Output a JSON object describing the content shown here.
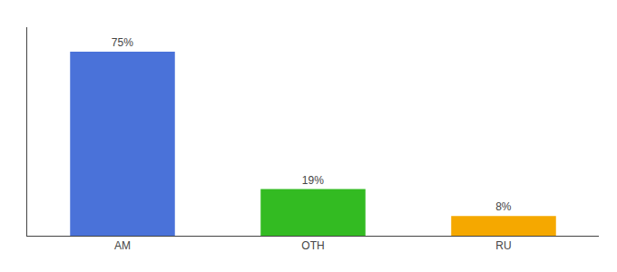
{
  "chart_data": {
    "type": "bar",
    "categories": [
      "AM",
      "OTH",
      "RU"
    ],
    "values": [
      75,
      19,
      8
    ],
    "value_labels": [
      "75%",
      "19%",
      "8%"
    ],
    "colors": [
      "#4a72d9",
      "#33bb22",
      "#f5a800"
    ],
    "ylim": [
      0,
      85
    ],
    "data_labels": true,
    "tick_labels": "x",
    "grid": false
  }
}
